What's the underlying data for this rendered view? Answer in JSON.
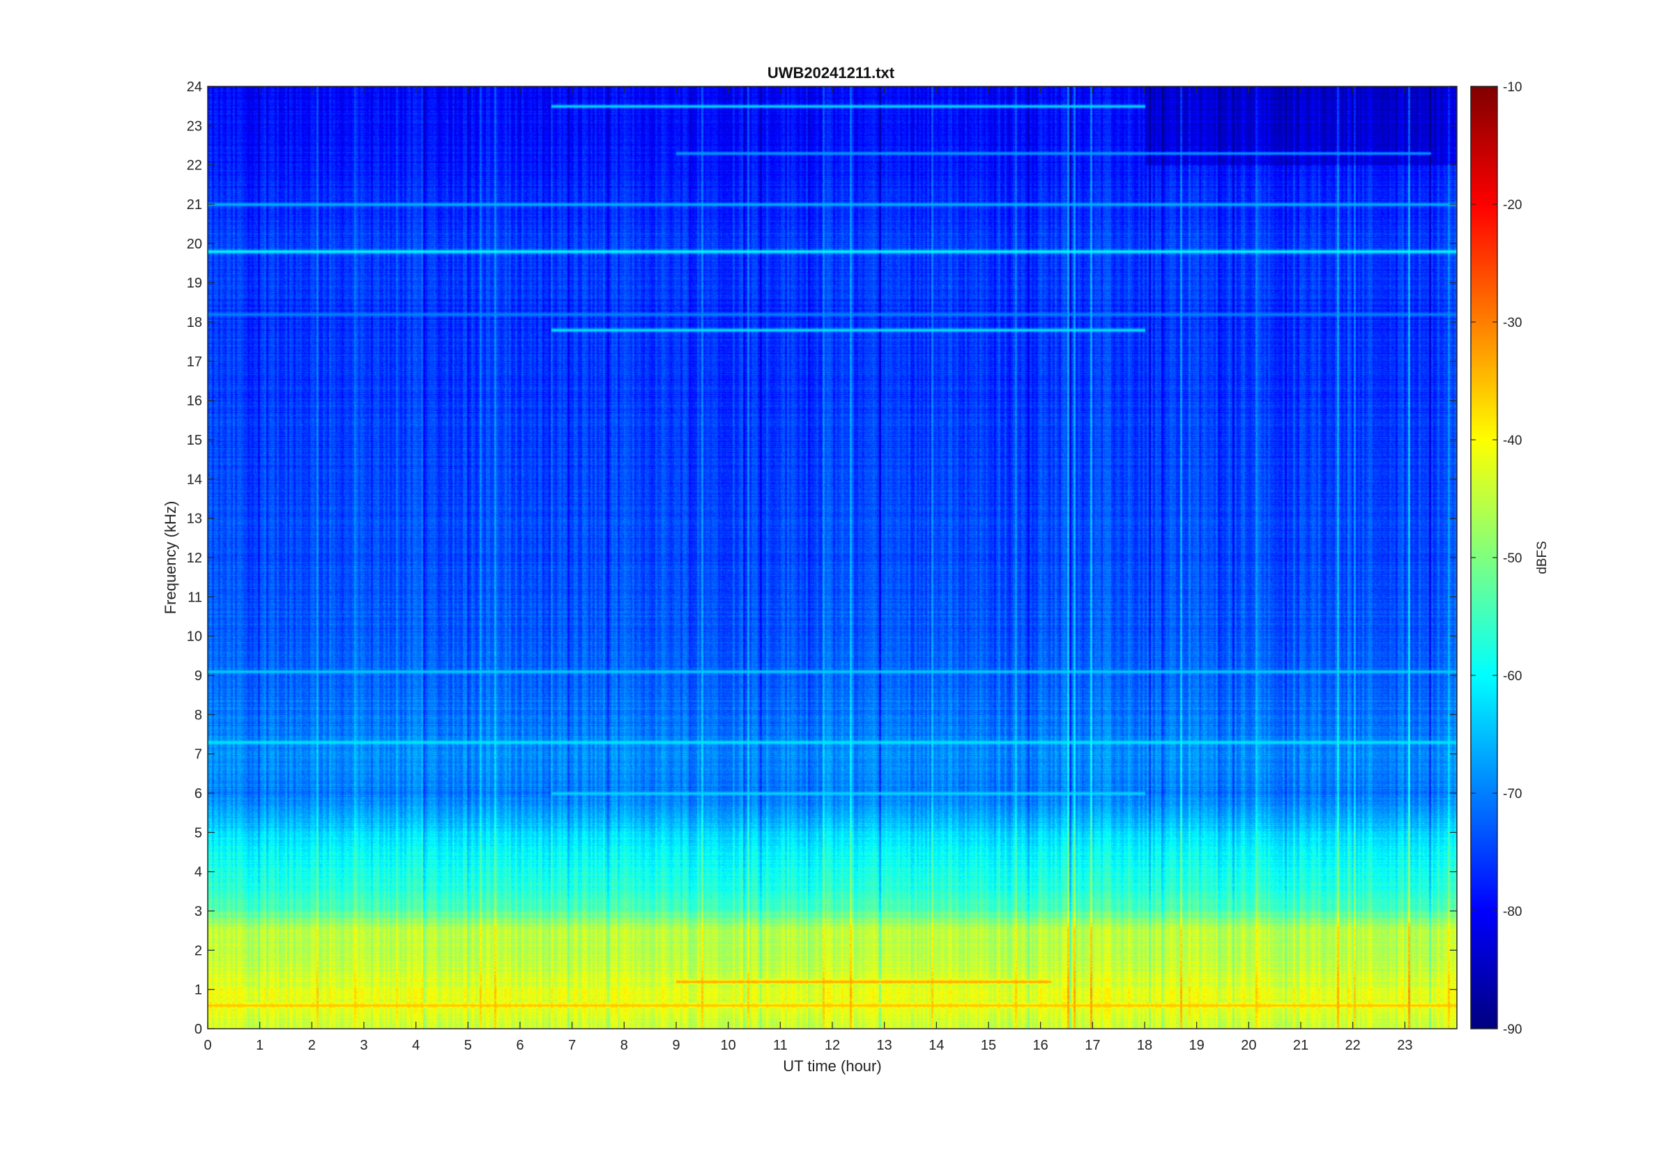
{
  "chart_data": {
    "type": "heatmap",
    "title": "UWB20241211.txt",
    "xlabel": "UT time (hour)",
    "ylabel": "Frequency (kHz)",
    "xlim": [
      0,
      24
    ],
    "ylim": [
      0,
      24
    ],
    "x_ticks": [
      "0",
      "1",
      "2",
      "3",
      "4",
      "5",
      "6",
      "7",
      "8",
      "9",
      "10",
      "11",
      "12",
      "13",
      "14",
      "15",
      "16",
      "17",
      "18",
      "19",
      "20",
      "21",
      "22",
      "23"
    ],
    "y_ticks": [
      "0",
      "1",
      "2",
      "3",
      "4",
      "5",
      "6",
      "7",
      "8",
      "9",
      "10",
      "11",
      "12",
      "13",
      "14",
      "15",
      "16",
      "17",
      "18",
      "19",
      "20",
      "21",
      "22",
      "23",
      "24"
    ],
    "colorbar": {
      "label": "dBFS",
      "range": [
        -90,
        -10
      ],
      "ticks": [
        "-10",
        "-20",
        "-30",
        "-40",
        "-50",
        "-60",
        "-70",
        "-80",
        "-90"
      ],
      "colormap": "jet"
    },
    "spectral_profile": {
      "freq_khz": [
        0,
        0.5,
        1,
        1.5,
        2,
        2.5,
        3,
        3.5,
        4,
        4.5,
        5,
        6,
        7,
        8,
        9,
        10,
        12,
        15,
        18,
        20,
        22,
        24
      ],
      "level_dbfs": [
        -44,
        -42,
        -42,
        -44,
        -45,
        -45,
        -53,
        -57,
        -58,
        -60,
        -63,
        -70,
        -69,
        -71,
        -72,
        -73,
        -74,
        -75,
        -76,
        -75,
        -78,
        -80
      ]
    },
    "persistent_lines": [
      {
        "freq_khz": 19.8,
        "level_dbfs": -60,
        "start_hour": 0,
        "end_hour": 24
      },
      {
        "freq_khz": 21.0,
        "level_dbfs": -66,
        "start_hour": 0,
        "end_hour": 24
      },
      {
        "freq_khz": 18.2,
        "level_dbfs": -70,
        "start_hour": 0,
        "end_hour": 24
      },
      {
        "freq_khz": 17.8,
        "level_dbfs": -62,
        "start_hour": 6.6,
        "end_hour": 18.0
      },
      {
        "freq_khz": 23.5,
        "level_dbfs": -63,
        "start_hour": 6.6,
        "end_hour": 18.0
      },
      {
        "freq_khz": 22.3,
        "level_dbfs": -68,
        "start_hour": 9.0,
        "end_hour": 23.5
      },
      {
        "freq_khz": 6.0,
        "level_dbfs": -63,
        "start_hour": 6.6,
        "end_hour": 18.0
      },
      {
        "freq_khz": 9.1,
        "level_dbfs": -64,
        "start_hour": 0,
        "end_hour": 24
      },
      {
        "freq_khz": 7.3,
        "level_dbfs": -62,
        "start_hour": 0,
        "end_hour": 24
      },
      {
        "freq_khz": 1.2,
        "level_dbfs": -33,
        "start_hour": 9.0,
        "end_hour": 16.2
      },
      {
        "freq_khz": 0.6,
        "level_dbfs": -35,
        "start_hour": 0,
        "end_hour": 24
      }
    ],
    "grid": false
  }
}
